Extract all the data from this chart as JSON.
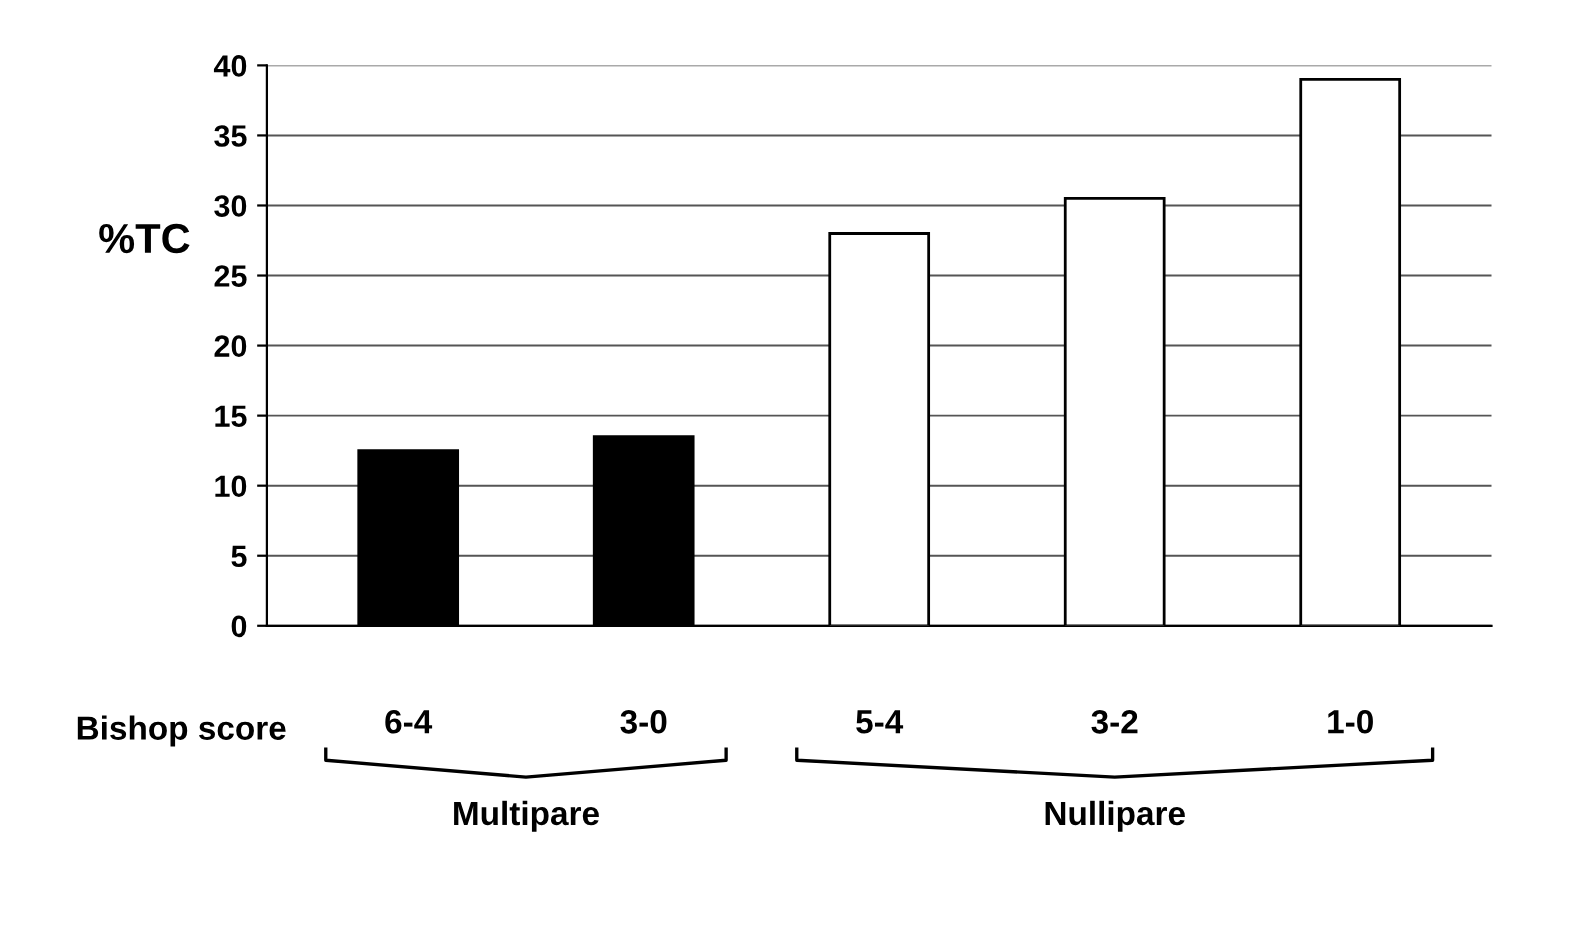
{
  "chart_data": {
    "type": "bar",
    "ylabel": "%TC",
    "xlabel": "Bishop score",
    "categories": [
      "6-4",
      "3-0",
      "5-4",
      "3-2",
      "1-0"
    ],
    "values": [
      12.5,
      13.5,
      28,
      30.5,
      39
    ],
    "colors": [
      "#000000",
      "#000000",
      "#ffffff",
      "#ffffff",
      "#ffffff"
    ],
    "ylim": [
      0,
      40
    ],
    "yticks": [
      0,
      5,
      10,
      15,
      20,
      25,
      30,
      35,
      40
    ],
    "grid": "y",
    "annotations": [
      "Multipare",
      "Nullipare"
    ]
  }
}
